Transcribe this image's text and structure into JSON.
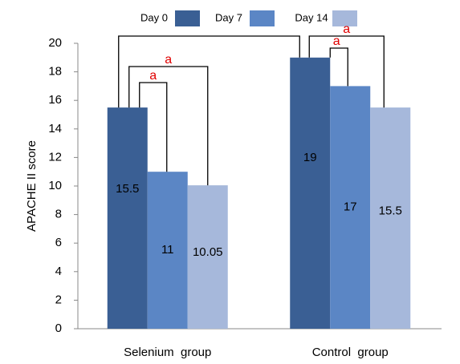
{
  "chart_data": {
    "type": "bar",
    "y_label": "APACHE II score",
    "categories": [
      "Selenium  group",
      "Control  group"
    ],
    "series": [
      {
        "name": "Day 0",
        "color": "#3a5f94",
        "values": [
          15.5,
          19
        ]
      },
      {
        "name": "Day 7",
        "color": "#5b86c5",
        "values": [
          11,
          17
        ]
      },
      {
        "name": "Day 14",
        "color": "#a6b8db",
        "values": [
          10.05,
          15.5
        ]
      }
    ],
    "ylim": [
      0,
      20
    ],
    "yticks": [
      0,
      2,
      4,
      6,
      8,
      10,
      12,
      14,
      16,
      18,
      20
    ],
    "grid": false,
    "legend": "top",
    "brackets": [
      {
        "from": [
          0,
          0
        ],
        "to": [
          0,
          1
        ],
        "label": "a"
      },
      {
        "from": [
          0,
          0
        ],
        "to": [
          0,
          2
        ],
        "label": "a"
      },
      {
        "from": [
          0,
          0
        ],
        "to": [
          1,
          0
        ]
      },
      {
        "from": [
          1,
          0
        ],
        "to": [
          1,
          1
        ],
        "label": "a"
      },
      {
        "from": [
          1,
          0
        ],
        "to": [
          1,
          2
        ],
        "label": "a"
      }
    ]
  }
}
